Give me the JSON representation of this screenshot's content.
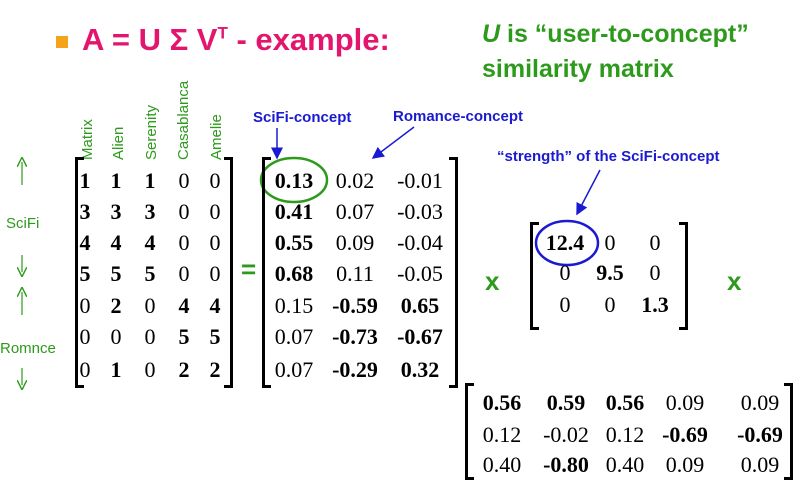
{
  "header": {
    "title": "A = U Σ V",
    "title_sup": "T",
    "title_suffix": " - example:",
    "note_italic": "U",
    "note_line1": " is “user-to-concept”",
    "note_line2": "similarity matrix"
  },
  "column_headers": [
    "Matrix",
    "Alien",
    "Serenity",
    "Casablanca",
    "Amelie"
  ],
  "row_groups": [
    "SciFi",
    "Romnce"
  ],
  "operators": {
    "equals": "=",
    "times1": "x",
    "times2": "x"
  },
  "annotations": {
    "scifi_concept": "SciFi-concept",
    "romance_concept": "Romance-concept",
    "strength": "“strength” of the SciFi-concept"
  },
  "matrices": {
    "A": [
      [
        {
          "text": "1",
          "bold": true
        },
        {
          "text": "1",
          "bold": true
        },
        {
          "text": "1",
          "bold": true
        },
        {
          "text": "0",
          "bold": false
        },
        {
          "text": "0",
          "bold": false
        }
      ],
      [
        {
          "text": "3",
          "bold": true
        },
        {
          "text": "3",
          "bold": true
        },
        {
          "text": "3",
          "bold": true
        },
        {
          "text": "0",
          "bold": false
        },
        {
          "text": "0",
          "bold": false
        }
      ],
      [
        {
          "text": "4",
          "bold": true
        },
        {
          "text": "4",
          "bold": true
        },
        {
          "text": "4",
          "bold": true
        },
        {
          "text": "0",
          "bold": false
        },
        {
          "text": "0",
          "bold": false
        }
      ],
      [
        {
          "text": "5",
          "bold": true
        },
        {
          "text": "5",
          "bold": true
        },
        {
          "text": "5",
          "bold": true
        },
        {
          "text": "0",
          "bold": false
        },
        {
          "text": "0",
          "bold": false
        }
      ],
      [
        {
          "text": "0",
          "bold": false
        },
        {
          "text": "2",
          "bold": true
        },
        {
          "text": "0",
          "bold": false
        },
        {
          "text": "4",
          "bold": true
        },
        {
          "text": "4",
          "bold": true
        }
      ],
      [
        {
          "text": "0",
          "bold": false
        },
        {
          "text": "0",
          "bold": false
        },
        {
          "text": "0",
          "bold": false
        },
        {
          "text": "5",
          "bold": true
        },
        {
          "text": "5",
          "bold": true
        }
      ],
      [
        {
          "text": "0",
          "bold": false
        },
        {
          "text": "1",
          "bold": true
        },
        {
          "text": "0",
          "bold": false
        },
        {
          "text": "2",
          "bold": true
        },
        {
          "text": "2",
          "bold": true
        }
      ]
    ],
    "U": [
      [
        {
          "text": "0.13",
          "bold": true
        },
        {
          "text": "0.02",
          "bold": false
        },
        {
          "text": "-0.01",
          "bold": false
        }
      ],
      [
        {
          "text": "0.41",
          "bold": true
        },
        {
          "text": "0.07",
          "bold": false
        },
        {
          "text": "-0.03",
          "bold": false
        }
      ],
      [
        {
          "text": "0.55",
          "bold": true
        },
        {
          "text": "0.09",
          "bold": false
        },
        {
          "text": "-0.04",
          "bold": false
        }
      ],
      [
        {
          "text": "0.68",
          "bold": true
        },
        {
          "text": "0.11",
          "bold": false
        },
        {
          "text": "-0.05",
          "bold": false
        }
      ],
      [
        {
          "text": "0.15",
          "bold": false
        },
        {
          "text": "-0.59",
          "bold": true
        },
        {
          "text": "0.65",
          "bold": true
        }
      ],
      [
        {
          "text": "0.07",
          "bold": false
        },
        {
          "text": "-0.73",
          "bold": true
        },
        {
          "text": "-0.67",
          "bold": true
        }
      ],
      [
        {
          "text": "0.07",
          "bold": false
        },
        {
          "text": "-0.29",
          "bold": true
        },
        {
          "text": "0.32",
          "bold": true
        }
      ]
    ],
    "Sigma": [
      [
        {
          "text": "12.4",
          "bold": true
        },
        {
          "text": "0",
          "bold": false
        },
        {
          "text": "0",
          "bold": false
        }
      ],
      [
        {
          "text": "0",
          "bold": false
        },
        {
          "text": "9.5",
          "bold": true
        },
        {
          "text": "0",
          "bold": false
        }
      ],
      [
        {
          "text": "0",
          "bold": false
        },
        {
          "text": "0",
          "bold": false
        },
        {
          "text": "1.3",
          "bold": true
        }
      ]
    ],
    "VT": [
      [
        {
          "text": "0.56",
          "bold": true
        },
        {
          "text": "0.59",
          "bold": true
        },
        {
          "text": "0.56",
          "bold": true
        },
        {
          "text": "0.09",
          "bold": false
        },
        {
          "text": "0.09",
          "bold": false
        }
      ],
      [
        {
          "text": "0.12",
          "bold": false
        },
        {
          "text": "-0.02",
          "bold": false
        },
        {
          "text": "0.12",
          "bold": false
        },
        {
          "text": "-0.69",
          "bold": true
        },
        {
          "text": "-0.69",
          "bold": true
        }
      ],
      [
        {
          "text": "0.40",
          "bold": false
        },
        {
          "text": "-0.80",
          "bold": true
        },
        {
          "text": "0.40",
          "bold": false
        },
        {
          "text": "0.09",
          "bold": false
        },
        {
          "text": "0.09",
          "bold": false
        }
      ]
    ]
  }
}
